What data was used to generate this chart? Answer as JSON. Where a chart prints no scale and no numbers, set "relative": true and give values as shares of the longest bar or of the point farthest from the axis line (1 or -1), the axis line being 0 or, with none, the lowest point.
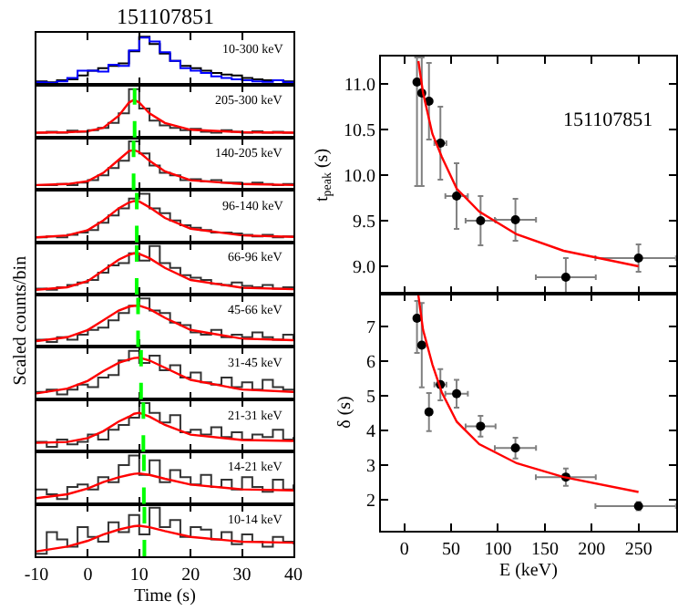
{
  "chart_data": [
    {
      "type": "step",
      "title": "151107851",
      "relative": true,
      "annotations": [
        "10-300 keV"
      ],
      "xlim": [
        -10,
        40
      ],
      "xticks": [
        -10,
        0,
        10,
        20,
        30,
        40
      ],
      "tick_labels": false,
      "x": [
        -10,
        -8,
        -6,
        -4,
        -2,
        0,
        2,
        4,
        6,
        8,
        10,
        12,
        14,
        16,
        18,
        20,
        22,
        24,
        26,
        28,
        30,
        32,
        34,
        36,
        38,
        40
      ],
      "series": [
        {
          "color": "#000000",
          "values": [
            0.08,
            0.06,
            0.1,
            0.12,
            0.2,
            0.3,
            0.35,
            0.4,
            0.45,
            0.7,
            1.0,
            0.85,
            0.65,
            0.5,
            0.4,
            0.35,
            0.3,
            0.25,
            0.22,
            0.2,
            0.15,
            0.12,
            0.1,
            0.1,
            0.08,
            0.07
          ]
        },
        {
          "color": "#0000ff",
          "values": [
            0.06,
            0.05,
            0.08,
            0.15,
            0.3,
            0.3,
            0.28,
            0.42,
            0.4,
            0.72,
            0.98,
            0.9,
            0.68,
            0.5,
            0.35,
            0.3,
            0.25,
            0.18,
            0.15,
            0.12,
            0.1,
            0.08,
            0.07,
            0.1,
            0.06,
            0.05
          ]
        }
      ]
    },
    {
      "type": "step",
      "relative": true,
      "annotations": [
        "205-300 keV"
      ],
      "xlim": [
        -10,
        40
      ],
      "xticks": [
        -10,
        0,
        10,
        20,
        30,
        40
      ],
      "tick_labels": false,
      "x": [
        -10,
        -8,
        -6,
        -4,
        -2,
        0,
        2,
        4,
        6,
        8,
        10,
        12,
        14,
        16,
        18,
        20,
        22,
        24,
        26,
        28,
        30,
        32,
        34,
        36,
        38,
        40
      ],
      "ref_lines": [
        {
          "axis": "x",
          "value": 9.1,
          "color": "#00ff00",
          "line_style": "dashed"
        }
      ],
      "series": [
        {
          "color": "#333333",
          "values": [
            0.1,
            0.12,
            0.1,
            0.14,
            0.12,
            0.15,
            0.2,
            0.3,
            0.5,
            1.0,
            0.6,
            0.35,
            0.25,
            0.2,
            0.15,
            0.18,
            0.12,
            0.1,
            0.15,
            0.12,
            0.1,
            0.13,
            0.1,
            0.12,
            0.1,
            0.12
          ]
        },
        {
          "type": "line",
          "color": "#ff0000",
          "x": [
            -10,
            -4,
            0,
            3,
            6,
            8,
            9,
            10,
            12,
            15,
            20,
            30,
            40
          ],
          "values": [
            0.1,
            0.11,
            0.13,
            0.2,
            0.45,
            0.72,
            0.78,
            0.72,
            0.5,
            0.3,
            0.16,
            0.11,
            0.1
          ]
        }
      ]
    },
    {
      "type": "step",
      "relative": true,
      "annotations": [
        "140-205 keV"
      ],
      "xlim": [
        -10,
        40
      ],
      "xticks": [
        -10,
        0,
        10,
        20,
        30,
        40
      ],
      "tick_labels": false,
      "x": [
        -10,
        -8,
        -6,
        -4,
        -2,
        0,
        2,
        4,
        6,
        8,
        10,
        12,
        14,
        16,
        18,
        20,
        22,
        24,
        26,
        28,
        30,
        32,
        34,
        36,
        38,
        40
      ],
      "ref_lines": [
        {
          "axis": "x",
          "value": 8.9,
          "color": "#00ff00",
          "line_style": "dashed"
        }
      ],
      "series": [
        {
          "color": "#333333",
          "values": [
            0.1,
            0.1,
            0.12,
            0.1,
            0.15,
            0.2,
            0.3,
            0.45,
            0.6,
            1.0,
            0.75,
            0.5,
            0.35,
            0.3,
            0.2,
            0.22,
            0.18,
            0.2,
            0.15,
            0.15,
            0.12,
            0.15,
            0.12,
            0.1,
            0.12,
            0.1
          ]
        },
        {
          "type": "line",
          "color": "#ff0000",
          "x": [
            -10,
            -4,
            0,
            3,
            6,
            8,
            9,
            10,
            12,
            15,
            20,
            30,
            40
          ],
          "values": [
            0.1,
            0.12,
            0.18,
            0.35,
            0.62,
            0.8,
            0.82,
            0.78,
            0.6,
            0.38,
            0.2,
            0.12,
            0.1
          ]
        }
      ]
    },
    {
      "type": "step",
      "relative": true,
      "annotations": [
        "96-140 keV"
      ],
      "xlim": [
        -10,
        40
      ],
      "xticks": [
        -10,
        0,
        10,
        20,
        30,
        40
      ],
      "tick_labels": false,
      "x": [
        -10,
        -8,
        -6,
        -4,
        -2,
        0,
        2,
        4,
        6,
        8,
        10,
        12,
        14,
        16,
        18,
        20,
        22,
        24,
        26,
        28,
        30,
        32,
        34,
        36,
        38,
        40
      ],
      "ref_lines": [
        {
          "axis": "x",
          "value": 9.52,
          "color": "#00ff00",
          "line_style": "dashed"
        }
      ],
      "series": [
        {
          "color": "#333333",
          "values": [
            0.1,
            0.12,
            0.1,
            0.15,
            0.2,
            0.25,
            0.4,
            0.55,
            0.7,
            0.9,
            1.0,
            0.7,
            0.6,
            0.45,
            0.35,
            0.3,
            0.25,
            0.2,
            0.2,
            0.18,
            0.15,
            0.12,
            0.15,
            0.1,
            0.12,
            0.1
          ]
        },
        {
          "type": "line",
          "color": "#ff0000",
          "x": [
            -10,
            -4,
            0,
            3,
            6,
            8,
            9,
            10,
            12,
            15,
            20,
            30,
            40
          ],
          "values": [
            0.1,
            0.14,
            0.25,
            0.45,
            0.7,
            0.82,
            0.85,
            0.84,
            0.72,
            0.5,
            0.28,
            0.14,
            0.11
          ]
        }
      ]
    },
    {
      "type": "step",
      "relative": true,
      "annotations": [
        "66-96 keV"
      ],
      "xlim": [
        -10,
        40
      ],
      "xticks": [
        -10,
        0,
        10,
        20,
        30,
        40
      ],
      "tick_labels": false,
      "x": [
        -10,
        -8,
        -6,
        -4,
        -2,
        0,
        2,
        4,
        6,
        8,
        10,
        12,
        14,
        16,
        18,
        20,
        22,
        24,
        26,
        28,
        30,
        32,
        34,
        36,
        38,
        40
      ],
      "ref_lines": [
        {
          "axis": "x",
          "value": 9.5,
          "color": "#00ff00",
          "line_style": "dashed"
        }
      ],
      "series": [
        {
          "color": "#333333",
          "values": [
            0.12,
            0.1,
            0.15,
            0.2,
            0.25,
            0.3,
            0.45,
            0.6,
            0.65,
            0.85,
            0.7,
            1.0,
            0.65,
            0.55,
            0.4,
            0.35,
            0.3,
            0.22,
            0.2,
            0.25,
            0.18,
            0.15,
            0.2,
            0.12,
            0.15,
            0.12
          ]
        },
        {
          "type": "line",
          "color": "#ff0000",
          "x": [
            -10,
            -4,
            0,
            3,
            6,
            8,
            9,
            10,
            12,
            15,
            20,
            30,
            40
          ],
          "values": [
            0.1,
            0.15,
            0.28,
            0.5,
            0.72,
            0.82,
            0.85,
            0.84,
            0.75,
            0.55,
            0.3,
            0.14,
            0.11
          ]
        }
      ]
    },
    {
      "type": "step",
      "relative": true,
      "ylabel": "Scaled counts/bin",
      "annotations": [
        "45-66 keV"
      ],
      "xlim": [
        -10,
        40
      ],
      "xticks": [
        -10,
        0,
        10,
        20,
        30,
        40
      ],
      "tick_labels": false,
      "x": [
        -10,
        -8,
        -6,
        -4,
        -2,
        0,
        2,
        4,
        6,
        8,
        10,
        12,
        14,
        16,
        18,
        20,
        22,
        24,
        26,
        28,
        30,
        32,
        34,
        36,
        38,
        40
      ],
      "ref_lines": [
        {
          "axis": "x",
          "value": 9.77,
          "color": "#00ff00",
          "line_style": "dashed"
        }
      ],
      "series": [
        {
          "color": "#333333",
          "values": [
            0.15,
            0.1,
            0.2,
            0.15,
            0.25,
            0.35,
            0.4,
            0.55,
            0.7,
            0.85,
            1.0,
            0.75,
            0.7,
            0.5,
            0.45,
            0.3,
            0.25,
            0.35,
            0.2,
            0.25,
            0.2,
            0.3,
            0.2,
            0.15,
            0.25,
            0.15
          ]
        },
        {
          "type": "line",
          "color": "#ff0000",
          "x": [
            -10,
            -4,
            0,
            3,
            6,
            8,
            9,
            10,
            12,
            15,
            20,
            30,
            40
          ],
          "values": [
            0.12,
            0.2,
            0.35,
            0.55,
            0.75,
            0.83,
            0.85,
            0.85,
            0.78,
            0.6,
            0.35,
            0.17,
            0.14
          ]
        }
      ]
    },
    {
      "type": "step",
      "relative": true,
      "annotations": [
        "31-45 keV"
      ],
      "xlim": [
        -10,
        40
      ],
      "xticks": [
        -10,
        0,
        10,
        20,
        30,
        40
      ],
      "tick_labels": false,
      "x": [
        -10,
        -8,
        -6,
        -4,
        -2,
        0,
        2,
        4,
        6,
        8,
        10,
        12,
        14,
        16,
        18,
        20,
        22,
        24,
        26,
        28,
        30,
        32,
        34,
        36,
        38,
        40
      ],
      "ref_lines": [
        {
          "axis": "x",
          "value": 10.35,
          "color": "#00ff00",
          "line_style": "dashed"
        }
      ],
      "series": [
        {
          "color": "#333333",
          "values": [
            0.15,
            0.2,
            0.1,
            0.2,
            0.3,
            0.25,
            0.45,
            0.5,
            0.8,
            1.0,
            0.75,
            0.9,
            0.6,
            0.7,
            0.45,
            0.55,
            0.35,
            0.3,
            0.45,
            0.25,
            0.35,
            0.2,
            0.4,
            0.25,
            0.2,
            0.2
          ]
        },
        {
          "type": "line",
          "color": "#ff0000",
          "x": [
            -10,
            -4,
            0,
            3,
            6,
            8,
            9,
            10,
            12,
            15,
            20,
            30,
            40
          ],
          "values": [
            0.12,
            0.22,
            0.38,
            0.58,
            0.75,
            0.82,
            0.85,
            0.86,
            0.8,
            0.65,
            0.4,
            0.2,
            0.15
          ]
        }
      ]
    },
    {
      "type": "step",
      "relative": true,
      "annotations": [
        "21-31 keV"
      ],
      "xlim": [
        -10,
        40
      ],
      "xticks": [
        -10,
        0,
        10,
        20,
        30,
        40
      ],
      "tick_labels": false,
      "x": [
        -10,
        -8,
        -6,
        -4,
        -2,
        0,
        2,
        4,
        6,
        8,
        10,
        12,
        14,
        16,
        18,
        20,
        22,
        24,
        26,
        28,
        30,
        32,
        34,
        36,
        38,
        40
      ],
      "ref_lines": [
        {
          "axis": "x",
          "value": 10.8,
          "color": "#00ff00",
          "line_style": "dashed"
        }
      ],
      "series": [
        {
          "color": "#333333",
          "values": [
            0.2,
            0.1,
            0.25,
            0.15,
            0.2,
            0.35,
            0.25,
            0.45,
            0.55,
            0.7,
            1.0,
            0.8,
            0.6,
            0.75,
            0.4,
            0.45,
            0.35,
            0.5,
            0.3,
            0.4,
            0.25,
            0.35,
            0.3,
            0.45,
            0.25,
            0.3
          ]
        },
        {
          "type": "line",
          "color": "#ff0000",
          "x": [
            -10,
            -4,
            0,
            3,
            6,
            8,
            9,
            10,
            12,
            15,
            20,
            30,
            40
          ],
          "values": [
            0.18,
            0.2,
            0.28,
            0.42,
            0.62,
            0.72,
            0.78,
            0.8,
            0.72,
            0.55,
            0.35,
            0.24,
            0.22
          ]
        }
      ]
    },
    {
      "type": "step",
      "relative": true,
      "annotations": [
        "14-21 keV"
      ],
      "xlim": [
        -10,
        40
      ],
      "xticks": [
        -10,
        0,
        10,
        20,
        30,
        40
      ],
      "tick_labels": false,
      "x": [
        -10,
        -8,
        -6,
        -4,
        -2,
        0,
        2,
        4,
        6,
        8,
        10,
        12,
        14,
        16,
        18,
        20,
        22,
        24,
        26,
        28,
        30,
        32,
        34,
        36,
        38,
        40
      ],
      "ref_lines": [
        {
          "axis": "x",
          "value": 10.9,
          "color": "#00ff00",
          "line_style": "dashed"
        }
      ],
      "series": [
        {
          "color": "#333333",
          "values": [
            0.3,
            0.2,
            0.1,
            0.35,
            0.4,
            0.3,
            0.55,
            0.45,
            0.8,
            1.0,
            0.6,
            0.9,
            0.45,
            0.7,
            0.55,
            0.4,
            0.6,
            0.35,
            0.5,
            0.3,
            0.55,
            0.35,
            0.25,
            0.5,
            0.3,
            0.4
          ]
        },
        {
          "type": "line",
          "color": "#ff0000",
          "x": [
            -10,
            -4,
            0,
            3,
            6,
            8,
            9,
            10,
            12,
            15,
            20,
            30,
            40
          ],
          "values": [
            0.12,
            0.2,
            0.32,
            0.45,
            0.55,
            0.6,
            0.62,
            0.63,
            0.6,
            0.52,
            0.4,
            0.3,
            0.28
          ]
        }
      ]
    },
    {
      "type": "step",
      "relative": true,
      "xlabel": "Time (s)",
      "annotations": [
        "10-14 keV"
      ],
      "xlim": [
        -10,
        40
      ],
      "xticks": [
        -10,
        0,
        10,
        20,
        30,
        40
      ],
      "tick_labels": "x",
      "x": [
        -10,
        -8,
        -6,
        -4,
        -2,
        0,
        2,
        4,
        6,
        8,
        10,
        12,
        14,
        16,
        18,
        20,
        22,
        24,
        26,
        28,
        30,
        32,
        34,
        36,
        38,
        40
      ],
      "ref_lines": [
        {
          "axis": "x",
          "value": 11.0,
          "color": "#00ff00",
          "line_style": "dashed"
        }
      ],
      "series": [
        {
          "color": "#333333",
          "values": [
            0.05,
            0.5,
            0.35,
            0.2,
            0.6,
            0.4,
            0.3,
            0.7,
            0.5,
            0.85,
            0.45,
            1.0,
            0.6,
            0.75,
            0.4,
            0.6,
            0.55,
            0.35,
            0.5,
            0.25,
            0.45,
            0.3,
            0.2,
            0.4,
            0.3,
            0.25
          ]
        },
        {
          "type": "line",
          "color": "#ff0000",
          "x": [
            -10,
            -4,
            0,
            3,
            6,
            8,
            9,
            10,
            12,
            15,
            20,
            30,
            40
          ],
          "values": [
            0.1,
            0.2,
            0.32,
            0.45,
            0.55,
            0.6,
            0.62,
            0.63,
            0.6,
            0.52,
            0.4,
            0.3,
            0.28
          ]
        }
      ]
    },
    {
      "type": "scatter",
      "ylabel": "t$_{peak}$ (s)",
      "annotations": [
        "151107851"
      ],
      "xlim": [
        -25,
        290
      ],
      "xticks": [
        0,
        50,
        100,
        150,
        200,
        250
      ],
      "ylim": [
        8.7,
        11.3
      ],
      "yticks": [
        {
          "value": 9,
          "label": "9.0"
        },
        {
          "value": 9.5,
          "label": "9.5"
        },
        {
          "value": 10,
          "label": "10.0"
        },
        {
          "value": 10.5,
          "label": "10.5"
        },
        {
          "value": 11,
          "label": "11.0"
        }
      ],
      "tick_labels": "y",
      "x": [
        13.5,
        18.6,
        26.3,
        38.5,
        55.8,
        81.4,
        118.6,
        172.4,
        250
      ],
      "series": [
        {
          "color": "#000000",
          "values": [
            11.02,
            10.9,
            10.81,
            10.35,
            9.77,
            9.5,
            9.51,
            8.88,
            9.09
          ],
          "marker": "circle",
          "errors": [
            [
              9.88,
              11.29
            ],
            [
              9.88,
              11.29
            ],
            0.42,
            0.4,
            0.36,
            0.27,
            0.23,
            0.21,
            0.15
          ],
          "xerrors": [
            null,
            null,
            null,
            6.4,
            12,
            16,
            22,
            32,
            [
              204,
              290
            ]
          ]
        },
        {
          "type": "line",
          "color": "#ff0000",
          "x": [
            15,
            20,
            30,
            40,
            56,
            80,
            120,
            170,
            250
          ],
          "values": [
            11.25,
            10.9,
            10.45,
            10.2,
            9.85,
            9.6,
            9.35,
            9.17,
            9.0
          ]
        }
      ]
    },
    {
      "type": "scatter",
      "ylabel": "δ (s)",
      "xlabel": "E (keV)",
      "xlim": [
        -25,
        290
      ],
      "xticks": [
        0,
        50,
        100,
        150,
        200,
        250
      ],
      "ylim": [
        1.1,
        7.95
      ],
      "yticks": [
        2,
        3,
        4,
        5,
        6,
        7
      ],
      "x": [
        13.5,
        18.6,
        26.3,
        38.5,
        55.8,
        81.4,
        118.6,
        172.4,
        250
      ],
      "series": [
        {
          "color": "#000000",
          "values": [
            7.24,
            6.46,
            4.53,
            5.32,
            5.06,
            4.12,
            3.49,
            2.65,
            1.81
          ],
          "marker": "circle",
          "errors": [
            [
              6.24,
              7.74
            ],
            1.22,
            0.55,
            0.45,
            0.4,
            0.3,
            0.3,
            0.25,
            0.12
          ],
          "xerrors": [
            null,
            null,
            null,
            6.4,
            12,
            16,
            22,
            32,
            [
              204,
              290
            ]
          ]
        },
        {
          "type": "line",
          "color": "#ff0000",
          "x": [
            15,
            20,
            30,
            40,
            56,
            80,
            120,
            170,
            250
          ],
          "values": [
            7.9,
            6.9,
            5.9,
            5.1,
            4.25,
            3.6,
            3.05,
            2.65,
            2.22
          ]
        }
      ]
    }
  ]
}
